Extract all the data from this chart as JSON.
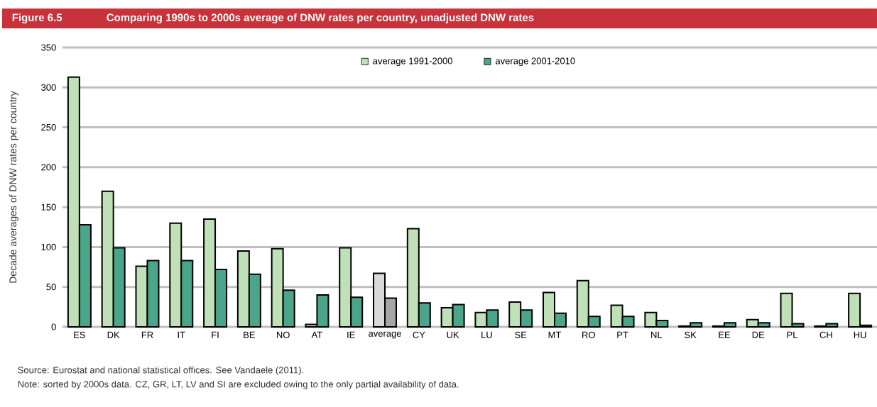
{
  "chart_data": {
    "type": "bar",
    "title": "Figure 6.5",
    "subtitle": "Comparing 1990s to 2000s average of DNW rates per country, unadjusted DNW rates",
    "ylabel": "Decade averages of DNW rates per country",
    "categories": [
      "ES",
      "DK",
      "FR",
      "IT",
      "FI",
      "BE",
      "NO",
      "AT",
      "IE",
      "average",
      "CY",
      "UK",
      "LU",
      "SE",
      "MT",
      "RO",
      "PT",
      "NL",
      "SK",
      "EE",
      "DE",
      "PL",
      "CH",
      "HU"
    ],
    "series": [
      {
        "name": "average 1991-2000",
        "color": "#c0e0b8",
        "colors": [
          "#c0e0b8",
          "#c0e0b8",
          "#c0e0b8",
          "#c0e0b8",
          "#c0e0b8",
          "#c0e0b8",
          "#c0e0b8",
          "#c0e0b8",
          "#c0e0b8",
          "#d9d9d9",
          "#c0e0b8",
          "#c0e0b8",
          "#c0e0b8",
          "#c0e0b8",
          "#c0e0b8",
          "#c0e0b8",
          "#c0e0b8",
          "#c0e0b8",
          "#c0e0b8",
          "#c0e0b8",
          "#c0e0b8",
          "#c0e0b8",
          "#c0e0b8",
          "#c0e0b8"
        ],
        "values": [
          313,
          170,
          76,
          130,
          135,
          95,
          98,
          3,
          99,
          67,
          123,
          24,
          18,
          31,
          43,
          58,
          27,
          18,
          1,
          1,
          9,
          42,
          1,
          42
        ]
      },
      {
        "name": "average 2001-2010",
        "color": "#4aa58a",
        "colors": [
          "#4aa58a",
          "#4aa58a",
          "#4aa58a",
          "#4aa58a",
          "#4aa58a",
          "#4aa58a",
          "#4aa58a",
          "#4aa58a",
          "#4aa58a",
          "#a6a6a6",
          "#4aa58a",
          "#4aa58a",
          "#4aa58a",
          "#4aa58a",
          "#4aa58a",
          "#4aa58a",
          "#4aa58a",
          "#4aa58a",
          "#4aa58a",
          "#4aa58a",
          "#4aa58a",
          "#4aa58a",
          "#4aa58a",
          "#4aa58a"
        ],
        "values": [
          128,
          99,
          83,
          83,
          72,
          66,
          46,
          40,
          37,
          36,
          30,
          28,
          21,
          21,
          17,
          13,
          13,
          8,
          5,
          5,
          5,
          4,
          4,
          2
        ]
      }
    ],
    "ylim": [
      0,
      350
    ],
    "yticks": [
      0,
      50,
      100,
      150,
      200,
      250,
      300,
      350
    ],
    "grid": "y",
    "legend": "top",
    "annotations": [
      "Source: Eurostat and national statistical offices. See Vandaele (2011).",
      "Note: sorted by 2000s data. CZ, GR, LT, LV and SI are excluded owing to the only partial availability of data."
    ]
  }
}
